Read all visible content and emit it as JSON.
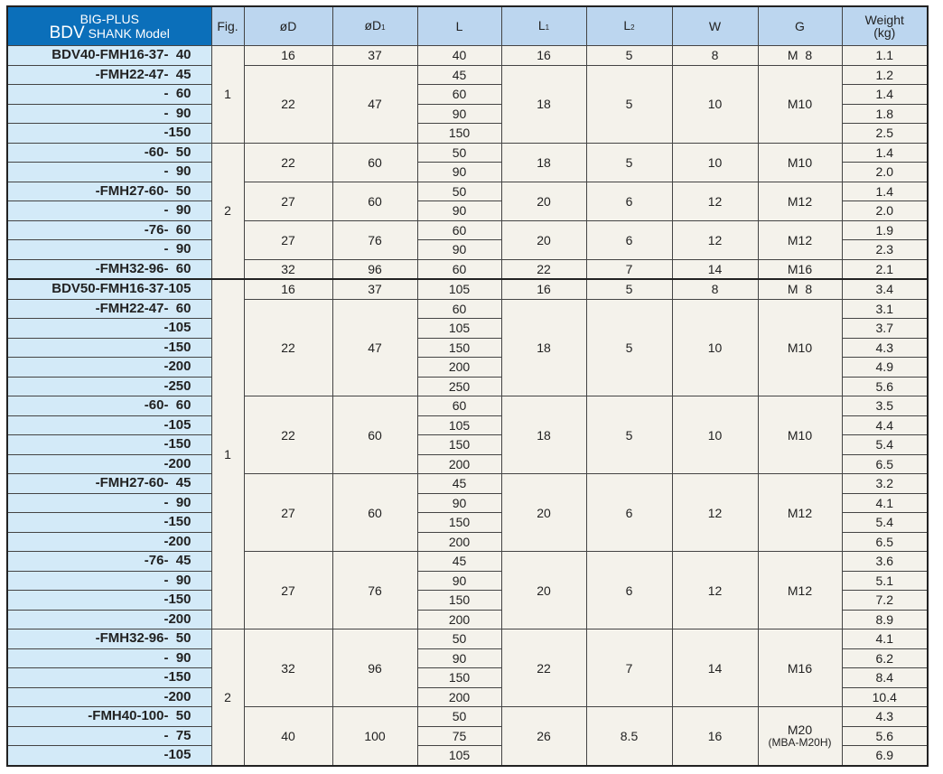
{
  "header": {
    "title_line1": "BIG-PLUS",
    "title_bdv": "BDV",
    "title_rest": "SHANK Model",
    "columns": [
      "Fig.",
      "øD",
      "øD1",
      "L",
      "L1",
      "L2",
      "W",
      "G",
      "Weight (kg)"
    ]
  },
  "rows": [
    {
      "model": "BDV40-FMH16-37-  40",
      "L": "40",
      "weight": "1.1"
    },
    {
      "model": "-FMH22-47-  45",
      "L": "45",
      "weight": "1.2"
    },
    {
      "model": "-  60",
      "L": "60",
      "weight": "1.4"
    },
    {
      "model": "-  90",
      "L": "90",
      "weight": "1.8"
    },
    {
      "model": "-150",
      "L": "150",
      "weight": "2.5"
    },
    {
      "model": "-60-  50",
      "L": "50",
      "weight": "1.4"
    },
    {
      "model": "-  90",
      "L": "90",
      "weight": "2.0"
    },
    {
      "model": "-FMH27-60-  50",
      "L": "50",
      "weight": "1.4"
    },
    {
      "model": "-  90",
      "L": "90",
      "weight": "2.0"
    },
    {
      "model": "-76-  60",
      "L": "60",
      "weight": "1.9"
    },
    {
      "model": "-  90",
      "L": "90",
      "weight": "2.3"
    },
    {
      "model": "-FMH32-96-  60",
      "L": "60",
      "weight": "2.1"
    },
    {
      "model": "BDV50-FMH16-37-105",
      "L": "105",
      "weight": "3.4"
    },
    {
      "model": "-FMH22-47-  60",
      "L": "60",
      "weight": "3.1"
    },
    {
      "model": "-105",
      "L": "105",
      "weight": "3.7"
    },
    {
      "model": "-150",
      "L": "150",
      "weight": "4.3"
    },
    {
      "model": "-200",
      "L": "200",
      "weight": "4.9"
    },
    {
      "model": "-250",
      "L": "250",
      "weight": "5.6"
    },
    {
      "model": "-60-  60",
      "L": "60",
      "weight": "3.5"
    },
    {
      "model": "-105",
      "L": "105",
      "weight": "4.4"
    },
    {
      "model": "-150",
      "L": "150",
      "weight": "5.4"
    },
    {
      "model": "-200",
      "L": "200",
      "weight": "6.5"
    },
    {
      "model": "-FMH27-60-  45",
      "L": "45",
      "weight": "3.2"
    },
    {
      "model": "-  90",
      "L": "90",
      "weight": "4.1"
    },
    {
      "model": "-150",
      "L": "150",
      "weight": "5.4"
    },
    {
      "model": "-200",
      "L": "200",
      "weight": "6.5"
    },
    {
      "model": "-76-  45",
      "L": "45",
      "weight": "3.6"
    },
    {
      "model": "-  90",
      "L": "90",
      "weight": "5.1"
    },
    {
      "model": "-150",
      "L": "150",
      "weight": "7.2"
    },
    {
      "model": "-200",
      "L": "200",
      "weight": "8.9"
    },
    {
      "model": "-FMH32-96-  50",
      "L": "50",
      "weight": "4.1"
    },
    {
      "model": "-  90",
      "L": "90",
      "weight": "6.2"
    },
    {
      "model": "-150",
      "L": "150",
      "weight": "8.4"
    },
    {
      "model": "-200",
      "L": "200",
      "weight": "10.4"
    },
    {
      "model": "-FMH40-100-  50",
      "L": "50",
      "weight": "4.3"
    },
    {
      "model": "-  75",
      "L": "75",
      "weight": "5.6"
    },
    {
      "model": "-105",
      "L": "105",
      "weight": "6.9"
    }
  ],
  "fig_groups": [
    {
      "fig": "1",
      "span": 5
    },
    {
      "fig": "2",
      "span": 7
    },
    {
      "fig": "1",
      "span": 18
    },
    {
      "fig": "2",
      "span": 7
    }
  ],
  "dim_groups": [
    {
      "D": "16",
      "D1": "37",
      "L1": "16",
      "L2": "5",
      "W": "8",
      "G": "M  8",
      "span": 1
    },
    {
      "D": "22",
      "D1": "47",
      "L1": "18",
      "L2": "5",
      "W": "10",
      "G": "M10",
      "span": 4
    },
    {
      "D": "22",
      "D1": "60",
      "L1": "18",
      "L2": "5",
      "W": "10",
      "G": "M10",
      "span": 2
    },
    {
      "D": "27",
      "D1": "60",
      "L1": "20",
      "L2": "6",
      "W": "12",
      "G": "M12",
      "span": 2
    },
    {
      "D": "27",
      "D1": "76",
      "L1": "20",
      "L2": "6",
      "W": "12",
      "G": "M12",
      "span": 2
    },
    {
      "D": "32",
      "D1": "96",
      "L1": "22",
      "L2": "7",
      "W": "14",
      "G": "M16",
      "span": 1
    },
    {
      "D": "16",
      "D1": "37",
      "L1": "16",
      "L2": "5",
      "W": "8",
      "G": "M  8",
      "span": 1
    },
    {
      "D": "22",
      "D1": "47",
      "L1": "18",
      "L2": "5",
      "W": "10",
      "G": "M10",
      "span": 5
    },
    {
      "D": "22",
      "D1": "60",
      "L1": "18",
      "L2": "5",
      "W": "10",
      "G": "M10",
      "span": 4
    },
    {
      "D": "27",
      "D1": "60",
      "L1": "20",
      "L2": "6",
      "W": "12",
      "G": "M12",
      "span": 4
    },
    {
      "D": "27",
      "D1": "76",
      "L1": "20",
      "L2": "6",
      "W": "12",
      "G": "M12",
      "span": 4
    },
    {
      "D": "32",
      "D1": "96",
      "L1": "22",
      "L2": "7",
      "W": "14",
      "G": "M16",
      "span": 4
    },
    {
      "D": "40",
      "D1": "100",
      "L1": "26",
      "L2": "8.5",
      "W": "16",
      "G": "M20",
      "G_note": "(MBA-M20H)",
      "span": 3
    }
  ],
  "colors": {
    "title_bg": "#0b6fba",
    "header_bg": "#bcd6ef",
    "model_bg": "#d3eaf8",
    "cell_bg": "#f4f2eb"
  }
}
